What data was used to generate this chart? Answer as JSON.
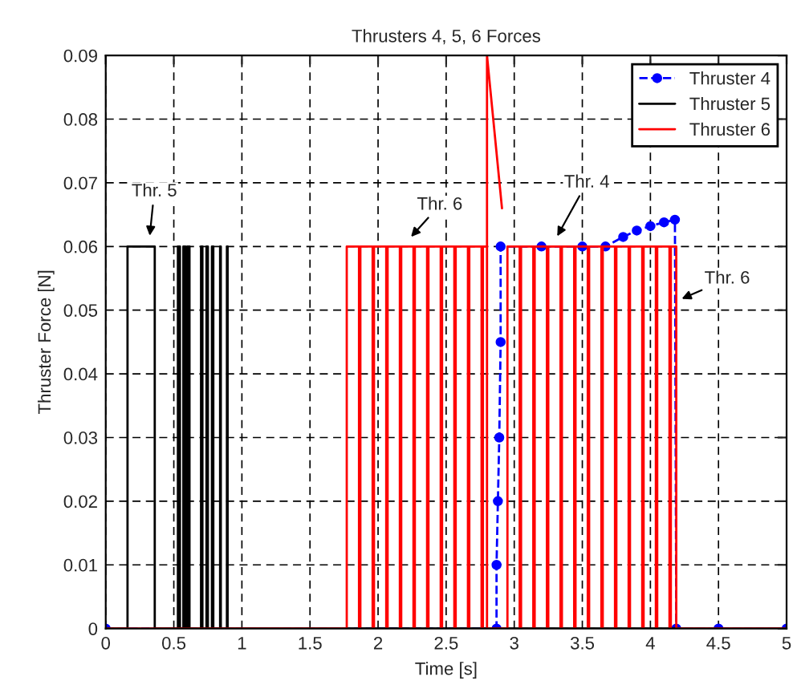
{
  "chart_data": {
    "type": "line",
    "title": "Thrusters 4, 5, 6 Forces",
    "xlabel": "Time [s]",
    "ylabel": "Thruster Force [N]",
    "xlim": [
      0,
      5
    ],
    "xticks": [
      0,
      0.5,
      1,
      1.5,
      2,
      2.5,
      3,
      3.5,
      4,
      4.5,
      5
    ],
    "ylim": [
      0,
      0.09
    ],
    "yticks": [
      0,
      0.01,
      0.02,
      0.03,
      0.04,
      0.05,
      0.06,
      0.07,
      0.08,
      0.09
    ],
    "grid": true,
    "legend": "top right",
    "series": [
      {
        "name": "Thruster 4",
        "color": "#0000ff",
        "line_style": "dashed",
        "marker": "circle",
        "x": [
          0,
          2.87,
          2.87,
          2.88,
          2.89,
          2.9,
          2.9,
          3.2,
          3.5,
          3.67,
          3.8,
          3.9,
          4.0,
          4.1,
          4.18,
          4.19,
          4.5,
          5
        ],
        "values": [
          0,
          0,
          0.01,
          0.02,
          0.03,
          0.045,
          0.06,
          0.06,
          0.06,
          0.06,
          0.0615,
          0.0625,
          0.0632,
          0.0638,
          0.0642,
          0,
          0,
          0
        ]
      },
      {
        "name": "Thruster 5",
        "type": "step",
        "color": "#000000",
        "line_style": "solid",
        "x": [
          0,
          0.16,
          0.36,
          0.53,
          0.545,
          0.57,
          0.585,
          0.6,
          0.615,
          0.7,
          0.71,
          0.74,
          0.75,
          0.78,
          0.79,
          0.84,
          0.845,
          0.89,
          0.895,
          5
        ],
        "values": [
          0,
          0.06,
          0,
          0.06,
          0,
          0.06,
          0,
          0.06,
          0,
          0.06,
          0,
          0.06,
          0,
          0.06,
          0,
          0.06,
          0,
          0.06,
          0,
          0
        ]
      },
      {
        "name": "Thruster 6",
        "type": "step",
        "color": "#ff0000",
        "line_style": "solid",
        "x": [
          0,
          1.77,
          1.86,
          1.87,
          1.96,
          1.97,
          2.06,
          2.07,
          2.16,
          2.17,
          2.26,
          2.27,
          2.36,
          2.37,
          2.46,
          2.47,
          2.56,
          2.57,
          2.66,
          2.67,
          2.76,
          2.77,
          2.8,
          2.95,
          3.04,
          3.05,
          3.14,
          3.15,
          3.24,
          3.25,
          3.34,
          3.35,
          3.44,
          3.45,
          3.54,
          3.55,
          3.64,
          3.65,
          3.74,
          3.75,
          3.84,
          3.85,
          3.94,
          3.95,
          4.04,
          4.05,
          4.14,
          4.15,
          4.19,
          5
        ],
        "values": [
          0,
          0.06,
          0,
          0.06,
          0,
          0.06,
          0,
          0.06,
          0,
          0.06,
          0,
          0.06,
          0,
          0.06,
          0,
          0.06,
          0,
          0.06,
          0,
          0.06,
          0,
          0.06,
          0,
          0.06,
          0,
          0.06,
          0,
          0.06,
          0,
          0.06,
          0,
          0.06,
          0,
          0.06,
          0,
          0.06,
          0,
          0.06,
          0,
          0.06,
          0,
          0.06,
          0,
          0.06,
          0,
          0.06,
          0,
          0.06,
          0,
          0
        ]
      },
      {
        "color": "#ff0000",
        "line_style": "solid",
        "x": [
          2.8,
          2.8,
          2.91
        ],
        "values": [
          0.06,
          0.09,
          0.066
        ]
      }
    ],
    "annotations": [
      {
        "text": "Thr. 5",
        "x": 0.32,
        "y": 0.061
      },
      {
        "text": "Thr. 6",
        "x": 2.22,
        "y": 0.061
      },
      {
        "text": "Thr. 4",
        "x": 3.3,
        "y": 0.061
      },
      {
        "text": "Thr. 6",
        "x": 4.2,
        "y": 0.0515
      }
    ]
  }
}
